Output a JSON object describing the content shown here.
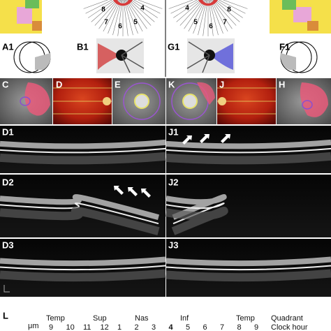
{
  "top_clock_left": [
    "8",
    "7",
    "6",
    "5",
    "4"
  ],
  "top_clock_right": [
    "4",
    "5",
    "6",
    "7",
    "8"
  ],
  "panel_labels": [
    "A1",
    "B1",
    "G1",
    "F1",
    "C",
    "D",
    "E",
    "K",
    "J",
    "H",
    "D1",
    "J1",
    "D2",
    "J2",
    "D3",
    "J3",
    "L"
  ],
  "table": {
    "unit": "μm",
    "quadrants": [
      "Temp",
      "Sup",
      "Nas",
      "Inf",
      "Temp"
    ],
    "quadrant_title": "Quadrant",
    "clock_hours": [
      "9",
      "10",
      "11",
      "12",
      "1",
      "2",
      "3",
      "4",
      "5",
      "6",
      "7",
      "8",
      "9"
    ],
    "clock_title": "Clock hour"
  }
}
